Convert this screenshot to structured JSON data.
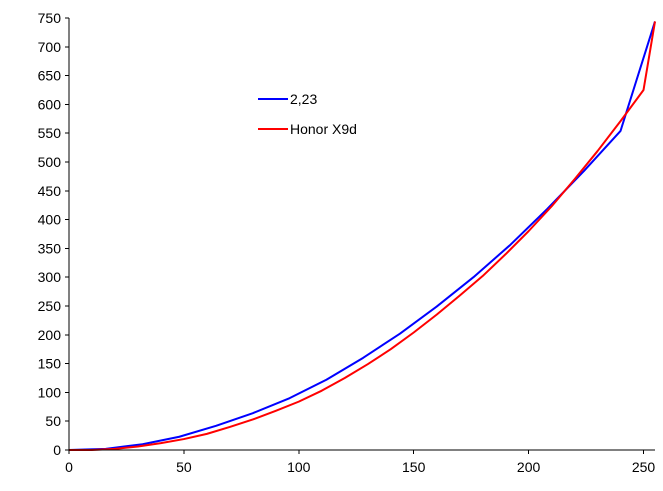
{
  "chart_data": {
    "type": "line",
    "title": "",
    "xlabel": "",
    "ylabel": "",
    "xlim": [
      0,
      255
    ],
    "ylim": [
      0,
      750
    ],
    "xticks": [
      0,
      50,
      100,
      150,
      200,
      250
    ],
    "yticks": [
      0,
      50,
      100,
      150,
      200,
      250,
      300,
      350,
      400,
      450,
      500,
      550,
      600,
      650,
      700,
      750
    ],
    "grid": false,
    "legend_position": "upper-center",
    "series": [
      {
        "name": "2,23",
        "color": "#0000ff",
        "x": [
          0,
          16,
          32,
          48,
          64,
          80,
          96,
          112,
          128,
          144,
          160,
          176,
          192,
          208,
          224,
          240,
          255
        ],
        "y": [
          0,
          2,
          10,
          23,
          42,
          64,
          90,
          122,
          160,
          202,
          249,
          300,
          356,
          418,
          484,
          554,
          744
        ]
      },
      {
        "name": "Honor X9d",
        "color": "#ff0000",
        "x": [
          0,
          10,
          20,
          30,
          40,
          50,
          60,
          70,
          80,
          90,
          100,
          110,
          120,
          130,
          140,
          150,
          160,
          170,
          180,
          190,
          200,
          210,
          220,
          230,
          240,
          250,
          255
        ],
        "y": [
          0,
          0,
          2,
          6,
          12,
          19,
          28,
          40,
          53,
          68,
          84,
          103,
          125,
          149,
          175,
          204,
          235,
          268,
          302,
          340,
          380,
          423,
          470,
          519,
          571,
          625,
          744
        ]
      }
    ]
  }
}
